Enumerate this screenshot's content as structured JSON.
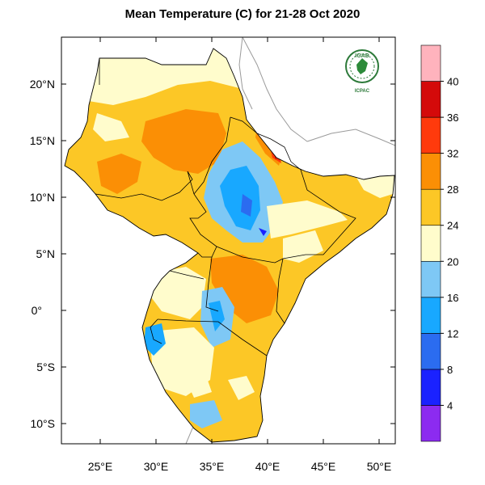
{
  "title": "Mean Temperature (C) for 21-28 Oct 2020",
  "map": {
    "lat_labels": [
      "20°N",
      "15°N",
      "10°N",
      "5°N",
      "0°",
      "5°S",
      "10°S"
    ],
    "lon_labels": [
      "25°E",
      "30°E",
      "35°E",
      "40°E",
      "45°E",
      "50°E"
    ]
  },
  "colorbar": {
    "labels": [
      "4",
      "8",
      "12",
      "16",
      "20",
      "24",
      "28",
      "32",
      "36",
      "40"
    ],
    "colors": [
      "#8c2bf0",
      "#1a22ff",
      "#2b6cf0",
      "#18a8ff",
      "#7ec8f5",
      "#fffccc",
      "#fcc726",
      "#fb8f05",
      "#ff3a0c",
      "#d40a0a",
      "#ffb3bd"
    ]
  },
  "logo": {
    "org": "IGAD",
    "center": "ICPAC"
  },
  "palette": {
    "cool_4": "#8c2bf0",
    "cool_8": "#1a22ff",
    "cool_12": "#2b6cf0",
    "cool_16": "#18a8ff",
    "cool_20": "#7ec8f5",
    "band_24": "#fffccc",
    "band_28": "#fcc726",
    "band_32": "#fb8f05",
    "band_36": "#ff3a0c",
    "band_40": "#d40a0a",
    "band_top": "#ffb3bd"
  }
}
